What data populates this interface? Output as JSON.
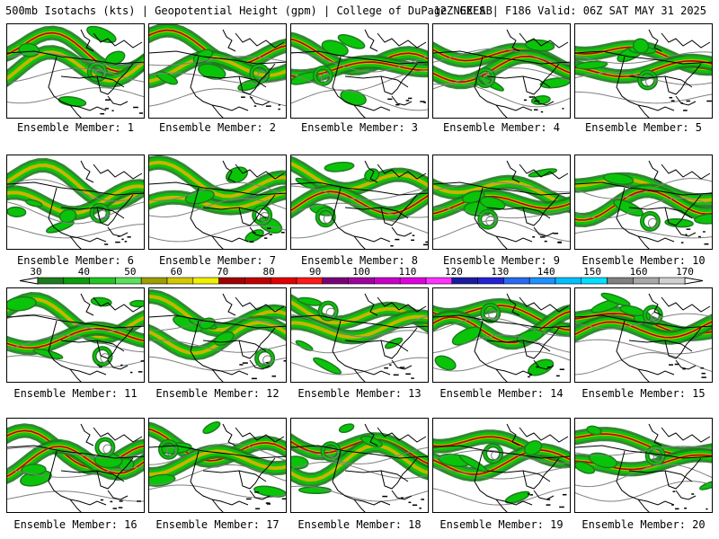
{
  "header": {
    "left": "500mb Isotachs (kts) | Geopotential Height (gpm) | College of DuPage NEXLAB",
    "right": "12Z GEFS | F186 Valid: 06Z SAT MAY 31 2025"
  },
  "members": [
    "Ensemble Member: 1",
    "Ensemble Member: 2",
    "Ensemble Member: 3",
    "Ensemble Member: 4",
    "Ensemble Member: 5",
    "Ensemble Member: 6",
    "Ensemble Member: 7",
    "Ensemble Member: 8",
    "Ensemble Member: 9",
    "Ensemble Member: 10",
    "Ensemble Member: 11",
    "Ensemble Member: 12",
    "Ensemble Member: 13",
    "Ensemble Member: 14",
    "Ensemble Member: 15",
    "Ensemble Member: 16",
    "Ensemble Member: 17",
    "Ensemble Member: 18",
    "Ensemble Member: 19",
    "Ensemble Member: 20"
  ],
  "colorbar": {
    "labels": [
      "30",
      "40",
      "50",
      "60",
      "70",
      "80",
      "90",
      "100",
      "110",
      "120",
      "130",
      "140",
      "150",
      "160",
      "170"
    ],
    "colors": [
      "#1e7a1e",
      "#0a9e0a",
      "#22c422",
      "#5be05b",
      "#9e9e00",
      "#d4c800",
      "#f0f000",
      "#a00000",
      "#c00000",
      "#e00000",
      "#ff1a1a",
      "#7a007a",
      "#a000a0",
      "#c800c8",
      "#e000e0",
      "#ff33ff",
      "#1a1aa0",
      "#2222d4",
      "#2a6af0",
      "#1e90ff",
      "#00bfff",
      "#00e0ff",
      "#808080",
      "#a8a8a8",
      "#d0d0d0"
    ]
  },
  "map_colors": {
    "background": "#ffffff",
    "height_contour": "#808080",
    "border": "#000000",
    "jet_outer": "#1e7a1e",
    "jet_mid": "#0ac40a",
    "jet_core": "#c8b400",
    "jet_max": "#b00000"
  }
}
